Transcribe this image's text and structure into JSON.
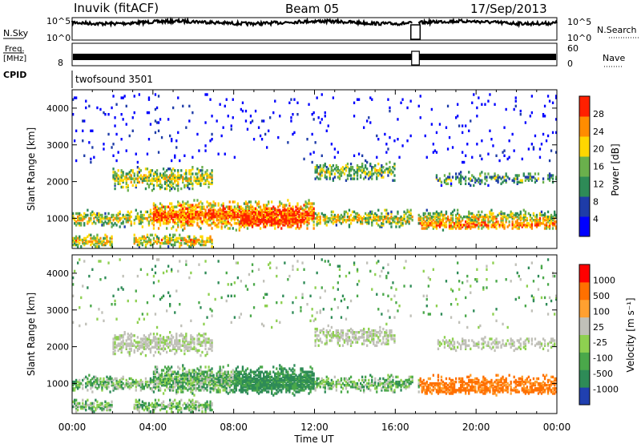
{
  "header": {
    "station": "Inuvik (fitACF)",
    "beam": "Beam 05",
    "date": "17/Sep/2013"
  },
  "chart_data": [
    {
      "type": "line",
      "panel": "noise",
      "left_label": "N.Sky",
      "right_label": "N.Search",
      "left_ticks": [
        "10^5",
        "10^0"
      ],
      "right_ticks": [
        "10^5",
        "10^0"
      ],
      "right_legend": "dotted"
    },
    {
      "type": "line",
      "panel": "frequency",
      "left_label_top": "Freq.",
      "left_label_bottom": "[MHz]",
      "right_label": "Nave",
      "left_ticks": [
        "8"
      ],
      "right_ticks": [
        "60",
        "0"
      ],
      "right_legend": "dotted"
    },
    {
      "type": "table",
      "panel": "cpid",
      "label": "CPID",
      "program": "twofsound 3501"
    },
    {
      "type": "heatmap",
      "panel": "power",
      "ylabel": "Slant Range [km]",
      "yticks": [
        "4000",
        "3000",
        "2000",
        "1000"
      ],
      "ylim": [
        180,
        4500
      ],
      "colorbar_label": "Power [dB]",
      "colorbar_ticks": [
        "28",
        "24",
        "20",
        "16",
        "12",
        "8",
        "4"
      ],
      "colors": [
        "#0000ff",
        "#1e3ca8",
        "#2e8b57",
        "#6ab04c",
        "#ffd700",
        "#ff8c00",
        "#ff2000"
      ],
      "data_gap_hours": [
        16.85,
        17.15
      ]
    },
    {
      "type": "heatmap",
      "panel": "velocity",
      "ylabel": "Slant Range [km]",
      "yticks": [
        "4000",
        "3000",
        "2000",
        "1000"
      ],
      "ylim": [
        180,
        4500
      ],
      "colorbar_label": "Velocity [m s⁻¹]",
      "colorbar_ticks": [
        "1000",
        "500",
        "100",
        "25",
        "-25",
        "-100",
        "-500",
        "-1000"
      ],
      "colors": [
        "#2040b0",
        "#2e8b57",
        "#4aa84a",
        "#8ed050",
        "#c0c0b8",
        "#ffa030",
        "#ff7000",
        "#ff0000"
      ],
      "data_gap_hours": [
        16.85,
        17.15
      ]
    }
  ],
  "x_axis": {
    "label": "Time UT",
    "ticks": [
      "00:00",
      "04:00",
      "08:00",
      "12:00",
      "16:00",
      "20:00",
      "00:00"
    ],
    "range_hours": [
      0,
      24
    ]
  }
}
